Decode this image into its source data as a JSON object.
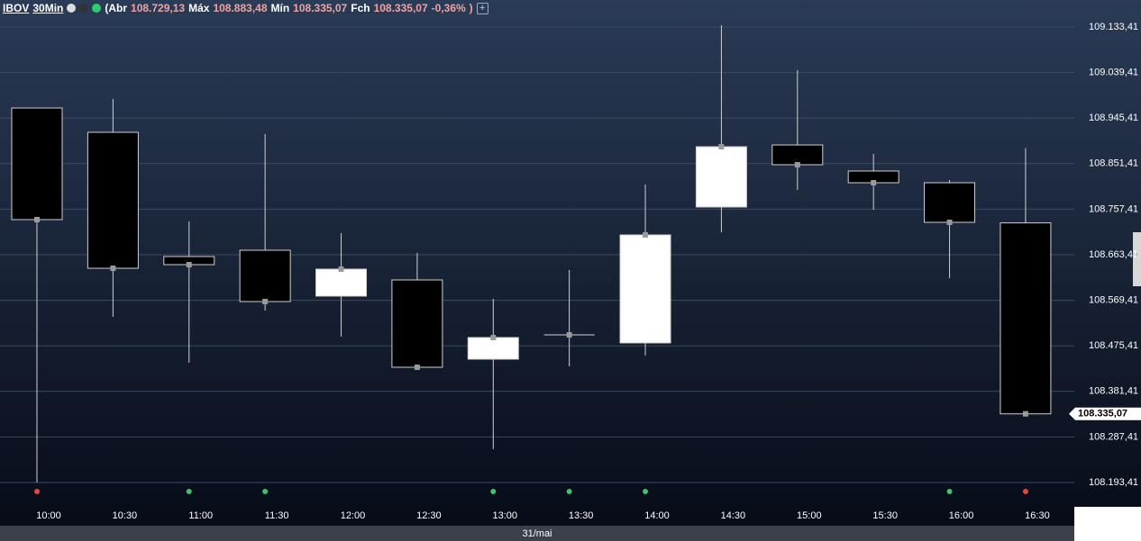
{
  "header": {
    "symbol": "IBOV",
    "interval": "30Min",
    "open_label": "(Abr",
    "open": "108.729,13",
    "high_label": "Máx",
    "high": "108.883,48",
    "low_label": "Mín",
    "low": "108.335,07",
    "close_label": "Fch",
    "close": "108.335,07",
    "change": "-0,36%",
    "close_paren": ")"
  },
  "chart_data": {
    "type": "candlestick",
    "categories": [
      "10:00",
      "10:30",
      "11:00",
      "11:30",
      "12:00",
      "12:30",
      "13:00",
      "13:30",
      "14:00",
      "14:30",
      "15:00",
      "15:30",
      "16:00",
      "16:30"
    ],
    "open": [
      108966.2,
      108916.1,
      108659.7,
      108672.7,
      108578.0,
      108611.4,
      108447.9,
      108498.1,
      108481.4,
      108761.9,
      108890.0,
      108836.2,
      108812.0,
      108729.13
    ],
    "high": [
      108966.2,
      108984.8,
      108732.1,
      108912.3,
      108708.0,
      108667.1,
      108572.4,
      108631.8,
      108808.3,
      109137.1,
      109044.2,
      108871.5,
      108817.6,
      108883.48
    ],
    "low": [
      108193.4,
      108535.2,
      108440.5,
      108548.2,
      108494.4,
      108425.6,
      108262.1,
      108433.0,
      108455.3,
      108709.8,
      108797.2,
      108756.3,
      108615.1,
      108335.07
    ],
    "close": [
      108735.9,
      108635.5,
      108643.0,
      108566.8,
      108633.7,
      108431.2,
      108492.5,
      108498.1,
      108704.3,
      108886.3,
      108849.2,
      108812.0,
      108730.3,
      108335.07
    ],
    "up_color": "#ffffff",
    "down_color": "#000000",
    "signal_colors": [
      "#e8463c",
      null,
      "#3cc46a",
      "#3cc46a",
      null,
      null,
      "#3cc46a",
      "#3cc46a",
      "#3cc46a",
      null,
      null,
      null,
      "#3cc46a",
      "#e8463c"
    ],
    "ylim": [
      108148.8,
      109155.7
    ],
    "yticks": [
      {
        "value": 109133.41,
        "label": "109.133,41"
      },
      {
        "value": 109039.41,
        "label": "109.039,41"
      },
      {
        "value": 108945.41,
        "label": "108.945,41"
      },
      {
        "value": 108851.41,
        "label": "108.851,41"
      },
      {
        "value": 108757.41,
        "label": "108.757,41"
      },
      {
        "value": 108663.41,
        "label": "108.663,41"
      },
      {
        "value": 108569.41,
        "label": "108.569,41"
      },
      {
        "value": 108475.41,
        "label": "108.475,41"
      },
      {
        "value": 108381.41,
        "label": "108.381,41"
      },
      {
        "value": 108287.41,
        "label": "108.287,41"
      },
      {
        "value": 108193.41,
        "label": "108.193,41"
      }
    ],
    "grid": true,
    "last_price": {
      "value": 108335.07,
      "label": "108.335,07"
    },
    "date_label": "31/mai"
  }
}
